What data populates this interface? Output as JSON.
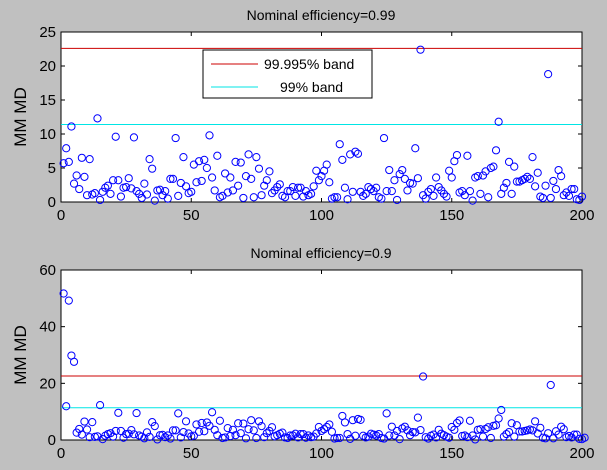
{
  "chart_data": [
    {
      "type": "scatter",
      "title": "Nominal efficiency=0.99",
      "ylabel": "MM MD",
      "xlim": [
        0,
        200
      ],
      "ylim": [
        0,
        25
      ],
      "xticks": [
        "0",
        "50",
        "100",
        "150",
        "200"
      ],
      "yticks": [
        "0",
        "5",
        "10",
        "15",
        "20",
        "25"
      ],
      "ytick_values": [
        0,
        5,
        10,
        15,
        20,
        25
      ],
      "grid": false,
      "legend_position": "upper-center",
      "marker": "open-circle",
      "marker_color": "#0000ff",
      "reference_lines": [
        {
          "label": "99.995% band",
          "y": 22.6,
          "color": "#cc0000"
        },
        {
          "label": "99% band",
          "y": 11.4,
          "color": "#00e5e5"
        }
      ],
      "series": [
        {
          "values": [
            5.7,
            7.9,
            5.9,
            11.1,
            2.7,
            3.9,
            1.9,
            6.5,
            3.7,
            1.0,
            6.3,
            1.1,
            1.3,
            12.3,
            0.3,
            1.5,
            2.1,
            2.4,
            1.2,
            3.2,
            9.6,
            3.2,
            0.8,
            2.1,
            2.2,
            3.5,
            2.0,
            9.5,
            1.6,
            1.2,
            0.6,
            2.7,
            1.1,
            6.3,
            4.9,
            0.2,
            1.7,
            1.8,
            1.0,
            1.6,
            0.5,
            3.4,
            3.4,
            9.4,
            0.9,
            2.8,
            6.6,
            2.3,
            1.3,
            1.5,
            5.5,
            2.9,
            6.0,
            3.1,
            6.2,
            5.0,
            9.8,
            3.6,
            1.7,
            6.8,
            0.7,
            0.9,
            4.2,
            1.4,
            3.6,
            1.7,
            5.9,
            2.4,
            5.8,
            0.6,
            3.8,
            7.0,
            3.4,
            0.7,
            6.6,
            4.9,
            1.0,
            2.4,
            3.2,
            4.5,
            1.3,
            1.7,
            2.2,
            2.6,
            0.9,
            0.7,
            1.6,
            1.6,
            2.2,
            0.9,
            2.1,
            2.1,
            0.8,
            1.6,
            1.0,
            1.2,
            2.3,
            4.6,
            3.2,
            3.8,
            4.6,
            5.5,
            2.9,
            0.5,
            0.7,
            0.7,
            8.5,
            6.2,
            2.1,
            0.4,
            7.0,
            1.5,
            7.4,
            7.1,
            1.5,
            0.9,
            1.2,
            2.2,
            1.9,
            1.6,
            2.1,
            0.7,
            0.5,
            9.4,
            1.6,
            4.7,
            1.6,
            3.2,
            0.3,
            4.1,
            4.7,
            3.4,
            1.7,
            2.8,
            2.7,
            7.9,
            3.5,
            22.4,
            1.0,
            0.5,
            1.5,
            1.9,
            0.9,
            3.6,
            2.2,
            1.7,
            1.2,
            0.8,
            4.6,
            3.6,
            6.0,
            6.9,
            1.4,
            1.6,
            1.0,
            6.8,
            1.6,
            0.2,
            3.6,
            3.8,
            1.2,
            3.9,
            4.5,
            0.7,
            5.0,
            5.2,
            7.6,
            11.8,
            1.2,
            2.1,
            2.8,
            5.9,
            1.2,
            5.2,
            3.0,
            3.0,
            3.2,
            3.4,
            3.7,
            3.4,
            6.6,
            2.3,
            4.3,
            0.8,
            0.6,
            2.4,
            18.8,
            0.6,
            3.1,
            1.9,
            4.7,
            3.8,
            1.0,
            1.4,
            0.9,
            1.9,
            1.9,
            0.4,
            0.3,
            0.8
          ]
        }
      ]
    },
    {
      "type": "scatter",
      "title": "Nominal efficiency=0.9",
      "ylabel": "MM MD",
      "xlim": [
        0,
        200
      ],
      "ylim": [
        0,
        60
      ],
      "xticks": [
        "0",
        "50",
        "100",
        "150",
        "200"
      ],
      "yticks": [
        "0",
        "20",
        "40",
        "60"
      ],
      "ytick_values": [
        0,
        20,
        40,
        60
      ],
      "grid": false,
      "marker": "open-circle",
      "marker_color": "#0000ff",
      "reference_lines": [
        {
          "y": 22.6,
          "color": "#cc0000"
        },
        {
          "y": 11.4,
          "color": "#00e5e5"
        }
      ],
      "series": [
        {
          "values": [
            51.7,
            11.9,
            49.2,
            29.8,
            27.6,
            2.6,
            3.9,
            1.9,
            6.5,
            3.7,
            1.0,
            6.3,
            1.1,
            1.3,
            12.3,
            0.3,
            1.5,
            2.1,
            2.4,
            1.2,
            3.2,
            9.6,
            3.2,
            0.8,
            2.1,
            2.2,
            3.5,
            2.0,
            9.5,
            1.6,
            1.2,
            0.6,
            2.7,
            1.1,
            6.3,
            4.9,
            0.2,
            1.7,
            1.8,
            1.0,
            1.6,
            0.5,
            3.4,
            3.4,
            9.4,
            0.9,
            2.8,
            6.6,
            2.3,
            1.3,
            1.5,
            5.5,
            2.9,
            6.0,
            3.1,
            6.2,
            5.0,
            9.8,
            3.6,
            1.7,
            6.8,
            0.7,
            0.9,
            4.2,
            1.4,
            3.6,
            1.7,
            5.9,
            2.4,
            5.8,
            0.6,
            3.8,
            7.0,
            3.4,
            0.7,
            6.6,
            4.9,
            1.0,
            2.4,
            3.2,
            4.5,
            1.3,
            1.7,
            2.2,
            2.6,
            0.9,
            0.7,
            1.6,
            1.6,
            2.2,
            0.9,
            2.1,
            2.1,
            0.8,
            1.6,
            1.0,
            1.2,
            2.3,
            4.6,
            3.2,
            3.8,
            4.6,
            5.5,
            2.9,
            0.5,
            0.7,
            0.7,
            8.5,
            6.2,
            2.1,
            0.4,
            7.0,
            1.5,
            7.4,
            7.1,
            1.5,
            0.9,
            1.2,
            2.2,
            1.9,
            1.6,
            2.1,
            0.7,
            0.5,
            9.4,
            1.6,
            4.7,
            1.6,
            3.2,
            0.3,
            4.1,
            4.7,
            3.4,
            1.7,
            2.8,
            2.7,
            7.9,
            3.5,
            22.4,
            1.0,
            0.5,
            1.5,
            1.9,
            0.9,
            3.6,
            2.2,
            1.7,
            1.2,
            0.8,
            4.6,
            3.6,
            6.0,
            6.9,
            1.4,
            1.6,
            1.0,
            6.8,
            1.6,
            0.2,
            3.6,
            3.8,
            1.2,
            3.9,
            4.5,
            0.7,
            5.0,
            5.2,
            7.6,
            10.6,
            1.2,
            2.1,
            2.8,
            5.9,
            1.2,
            5.2,
            3.0,
            3.0,
            3.2,
            3.4,
            3.7,
            3.4,
            6.6,
            2.3,
            4.3,
            0.8,
            0.6,
            2.4,
            19.4,
            0.6,
            3.1,
            1.9,
            4.7,
            3.8,
            1.0,
            1.4,
            0.9,
            1.9,
            1.9,
            0.4,
            0.3,
            0.8
          ]
        }
      ]
    }
  ]
}
